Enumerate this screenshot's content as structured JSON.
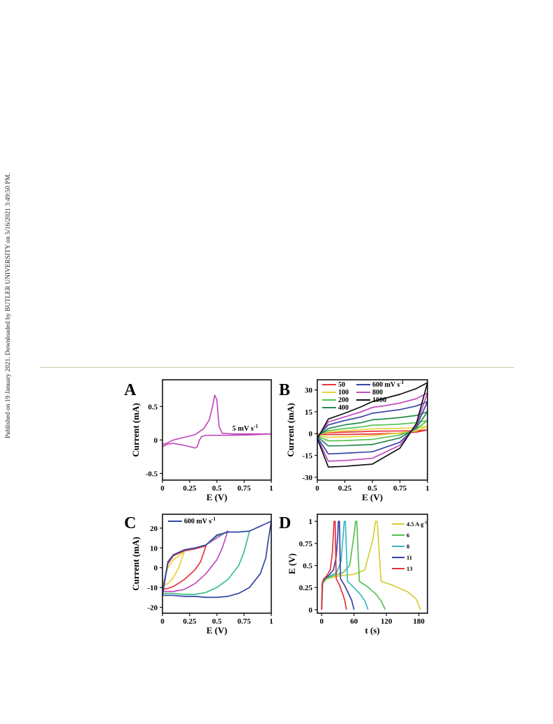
{
  "side_note": "Published on 19 January 2021. Downloaded by BUTLER UNIVERSITY on 5/16/2021 3:49:50 PM.",
  "chart_data": [
    {
      "panel": "A",
      "type": "line",
      "xlabel": "E (V)",
      "ylabel": "Current  (mA)",
      "xlim": [
        0,
        1
      ],
      "ylim": [
        -0.6,
        0.9
      ],
      "xticks": [
        "0",
        "0.25",
        "0.5",
        "0.75",
        "1"
      ],
      "xtick_values": [
        0,
        0.25,
        0.5,
        0.75,
        1
      ],
      "yticks": [
        "-0.5",
        "0",
        "0.5"
      ],
      "ytick_values": [
        -0.5,
        0,
        0.5
      ],
      "annotation": "5 mV s",
      "annotation_sup": "-1",
      "series": [
        {
          "color": "#c14bbd",
          "x": [
            0,
            0.05,
            0.1,
            0.2,
            0.3,
            0.38,
            0.43,
            0.46,
            0.48,
            0.5,
            0.52,
            0.55,
            0.65,
            0.8,
            1,
            0.8,
            0.6,
            0.4,
            0.36,
            0.34,
            0.32,
            0.3,
            0.2,
            0.1,
            0.05,
            0
          ],
          "y": [
            -0.07,
            -0.04,
            0.0,
            0.04,
            0.08,
            0.17,
            0.3,
            0.5,
            0.67,
            0.6,
            0.2,
            0.1,
            0.09,
            0.09,
            0.09,
            0.075,
            0.07,
            0.07,
            0.05,
            0.0,
            -0.1,
            -0.12,
            -0.08,
            -0.05,
            -0.06,
            -0.1
          ]
        }
      ]
    },
    {
      "panel": "B",
      "type": "line",
      "xlabel": "E (V)",
      "ylabel": "Current  (mA)",
      "xlim": [
        0,
        1
      ],
      "ylim": [
        -32,
        37
      ],
      "xticks": [
        "0",
        "0.25",
        "0.5",
        "0.75",
        "1"
      ],
      "xtick_values": [
        0,
        0.25,
        0.5,
        0.75,
        1
      ],
      "yticks": [
        "-30",
        "-15",
        "0",
        "15",
        "30"
      ],
      "ytick_values": [
        -30,
        -15,
        0,
        15,
        30
      ],
      "legend": [
        {
          "label": "50",
          "sup": "",
          "color": "#e8323a"
        },
        {
          "label": "100",
          "sup": "",
          "color": "#e6d43a"
        },
        {
          "label": "200",
          "sup": "",
          "color": "#55c24f"
        },
        {
          "label": "400",
          "sup": "",
          "color": "#238a4a"
        },
        {
          "label": "600 mV s",
          "sup": "-1",
          "color": "#3544a6"
        },
        {
          "label": "800",
          "sup": "",
          "color": "#c14bbd"
        },
        {
          "label": "1000",
          "sup": "",
          "color": "#111111"
        }
      ],
      "series": [
        {
          "name": "50",
          "color": "#e8323a",
          "x": [
            0,
            0.1,
            0.25,
            0.4,
            0.5,
            0.6,
            0.75,
            0.9,
            1,
            0.9,
            0.75,
            0.5,
            0.25,
            0.1,
            0
          ],
          "y": [
            -0.5,
            0.5,
            1.0,
            1.3,
            1.6,
            1.7,
            1.8,
            2.0,
            2.5,
            1.0,
            0.3,
            -0.3,
            -0.6,
            -0.7,
            -0.5
          ]
        },
        {
          "name": "100",
          "color": "#e6d43a",
          "x": [
            0,
            0.1,
            0.25,
            0.4,
            0.5,
            0.6,
            0.75,
            0.9,
            1,
            0.9,
            0.75,
            0.5,
            0.25,
            0.1,
            0
          ],
          "y": [
            -1.0,
            1.0,
            2.0,
            2.6,
            3.2,
            3.4,
            3.6,
            4.0,
            5.0,
            2.0,
            0.5,
            -1.5,
            -2.3,
            -2.6,
            -1.0
          ]
        },
        {
          "name": "200",
          "color": "#55c24f",
          "x": [
            0,
            0.1,
            0.25,
            0.4,
            0.5,
            0.6,
            0.75,
            0.9,
            1,
            0.9,
            0.75,
            0.5,
            0.25,
            0.1,
            0
          ],
          "y": [
            -1.5,
            2.0,
            3.5,
            4.5,
            5.8,
            6.0,
            6.5,
            7.5,
            9.0,
            3.0,
            -1.0,
            -4.0,
            -4.8,
            -5.0,
            -1.5
          ]
        },
        {
          "name": "400",
          "color": "#238a4a",
          "x": [
            0,
            0.1,
            0.25,
            0.4,
            0.5,
            0.6,
            0.75,
            0.9,
            1,
            0.9,
            0.75,
            0.5,
            0.25,
            0.1,
            0
          ],
          "y": [
            -2.0,
            3.5,
            6.0,
            7.5,
            9.5,
            10.0,
            11.0,
            12.5,
            15.0,
            4.0,
            -3.0,
            -7.5,
            -8.3,
            -8.5,
            -2.0
          ]
        },
        {
          "name": "600 mV s-1",
          "color": "#3544a6",
          "x": [
            0,
            0.1,
            0.25,
            0.4,
            0.5,
            0.6,
            0.75,
            0.9,
            1,
            0.9,
            0.75,
            0.5,
            0.25,
            0.1,
            0
          ],
          "y": [
            -2.5,
            6.0,
            9.0,
            11.5,
            14.0,
            15.0,
            16.5,
            19.0,
            22.0,
            5.0,
            -6.0,
            -12.5,
            -13.5,
            -14.0,
            -2.5
          ]
        },
        {
          "name": "800",
          "color": "#c14bbd",
          "x": [
            0,
            0.1,
            0.25,
            0.4,
            0.5,
            0.6,
            0.75,
            0.9,
            1,
            0.9,
            0.75,
            0.5,
            0.25,
            0.1,
            0
          ],
          "y": [
            -3.0,
            8.0,
            11.5,
            15.0,
            18.0,
            19.0,
            21.0,
            24.0,
            28.0,
            6.0,
            -8.0,
            -17.0,
            -18.5,
            -19.0,
            -3.0
          ]
        },
        {
          "name": "1000",
          "color": "#111111",
          "x": [
            0,
            0.1,
            0.25,
            0.4,
            0.5,
            0.6,
            0.75,
            0.9,
            1,
            0.9,
            0.75,
            0.5,
            0.25,
            0.1,
            0
          ],
          "y": [
            -3.5,
            10.0,
            14.0,
            18.5,
            22.0,
            24.0,
            27.0,
            31.0,
            35.0,
            7.0,
            -10.0,
            -21.0,
            -22.5,
            -23.0,
            -3.5
          ]
        }
      ]
    },
    {
      "panel": "C",
      "type": "line",
      "xlabel": "E (V)",
      "ylabel": "Current  (mA)",
      "xlim": [
        0,
        1
      ],
      "ylim": [
        -23,
        27
      ],
      "xticks": [
        "0",
        "0.25",
        "0.5",
        "0.75",
        "1"
      ],
      "xtick_values": [
        0,
        0.25,
        0.5,
        0.75,
        1
      ],
      "yticks": [
        "-20",
        "-10",
        "0",
        "10",
        "20"
      ],
      "ytick_values": [
        -20,
        -10,
        0,
        10,
        20
      ],
      "legend": [
        {
          "label": "600 mV s",
          "sup": "-1",
          "color": "#3544a6"
        }
      ],
      "series": [
        {
          "color": "#e6d43a",
          "x": [
            0,
            0.05,
            0.1,
            0.15,
            0.2,
            0.15,
            0.1,
            0.05,
            0
          ],
          "y": [
            -9.0,
            0.0,
            4.0,
            6.0,
            8.0,
            0.0,
            -5.0,
            -8.0,
            -9.0
          ]
        },
        {
          "color": "#e8323a",
          "x": [
            0,
            0.05,
            0.1,
            0.2,
            0.3,
            0.4,
            0.35,
            0.3,
            0.2,
            0.1,
            0.05,
            0
          ],
          "y": [
            -11.0,
            2.0,
            6.0,
            8.5,
            9.5,
            11.0,
            3.0,
            -1.0,
            -6.0,
            -9.5,
            -10.5,
            -11.0
          ]
        },
        {
          "color": "#c14bbd",
          "x": [
            0,
            0.05,
            0.1,
            0.2,
            0.3,
            0.4,
            0.5,
            0.6,
            0.55,
            0.5,
            0.4,
            0.3,
            0.2,
            0.1,
            0
          ],
          "y": [
            -12.0,
            3.0,
            6.5,
            9.0,
            10.0,
            11.5,
            15.0,
            18.5,
            10.0,
            4.0,
            -3.0,
            -8.0,
            -11.0,
            -12.0,
            -12.0
          ]
        },
        {
          "color": "#3bbf86",
          "x": [
            0,
            0.05,
            0.1,
            0.2,
            0.3,
            0.4,
            0.5,
            0.6,
            0.7,
            0.8,
            0.75,
            0.7,
            0.6,
            0.5,
            0.4,
            0.3,
            0.2,
            0.1,
            0
          ],
          "y": [
            -13.0,
            3.0,
            6.5,
            9.0,
            10.0,
            11.5,
            16.0,
            18.0,
            18.0,
            18.5,
            8.0,
            1.0,
            -6.0,
            -10.0,
            -12.5,
            -13.5,
            -13.5,
            -13.0,
            -13.0
          ]
        },
        {
          "color": "#3544a6",
          "x": [
            0,
            0.05,
            0.1,
            0.2,
            0.3,
            0.4,
            0.5,
            0.6,
            0.7,
            0.8,
            0.9,
            1.0,
            0.97,
            0.95,
            0.9,
            0.8,
            0.7,
            0.6,
            0.5,
            0.4,
            0.3,
            0.2,
            0.1,
            0.05,
            0
          ],
          "y": [
            -14.0,
            3.0,
            6.5,
            9.0,
            10.0,
            11.5,
            16.5,
            18.0,
            18.0,
            18.5,
            21.0,
            23.5,
            13.0,
            5.0,
            -3.0,
            -10.0,
            -13.0,
            -14.5,
            -15.0,
            -15.0,
            -14.5,
            -14.5,
            -14.0,
            -14.0,
            -14.0
          ]
        }
      ]
    },
    {
      "panel": "D",
      "type": "line",
      "xlabel": "t (s)",
      "ylabel": "E (V)",
      "xlim": [
        -8,
        196
      ],
      "ylim": [
        -0.04,
        1.08
      ],
      "xticks": [
        "0",
        "60",
        "120",
        "180"
      ],
      "xtick_values": [
        0,
        60,
        120,
        180
      ],
      "yticks": [
        "0",
        "0.25",
        "0.5",
        "0.75",
        "1"
      ],
      "ytick_values": [
        0,
        0.25,
        0.5,
        0.75,
        1
      ],
      "legend": [
        {
          "label": "4.5 A g",
          "sup": "-1",
          "color": "#d6cf35"
        },
        {
          "label": "6",
          "sup": "",
          "color": "#55c24f"
        },
        {
          "label": "8",
          "sup": "",
          "color": "#39b8c9"
        },
        {
          "label": "11",
          "sup": "",
          "color": "#3544a6"
        },
        {
          "label": "13",
          "sup": "",
          "color": "#e8323a"
        }
      ],
      "series": [
        {
          "name": "4.5 A g-1",
          "color": "#d6cf35",
          "x": [
            0,
            2,
            10,
            30,
            60,
            80,
            95,
            100,
            103,
            110,
            130,
            160,
            175,
            183
          ],
          "y": [
            0,
            0.3,
            0.35,
            0.38,
            0.4,
            0.45,
            0.8,
            1.0,
            1.0,
            0.32,
            0.28,
            0.2,
            0.12,
            0.0
          ]
        },
        {
          "name": "6",
          "color": "#55c24f",
          "x": [
            0,
            2,
            8,
            20,
            40,
            52,
            60,
            63,
            65,
            70,
            85,
            100,
            110,
            118
          ],
          "y": [
            0,
            0.3,
            0.35,
            0.38,
            0.42,
            0.5,
            0.85,
            1.0,
            1.0,
            0.32,
            0.26,
            0.18,
            0.1,
            0.0
          ]
        },
        {
          "name": "8",
          "color": "#39b8c9",
          "x": [
            0,
            1.5,
            6,
            15,
            28,
            36,
            40,
            42,
            44,
            48,
            60,
            72,
            80,
            86
          ],
          "y": [
            0,
            0.3,
            0.35,
            0.38,
            0.42,
            0.55,
            0.85,
            1.0,
            1.0,
            0.32,
            0.25,
            0.17,
            0.1,
            0.0
          ]
        },
        {
          "name": "11",
          "color": "#3544a6",
          "x": [
            0,
            1.5,
            5,
            12,
            22,
            27,
            30,
            31,
            33,
            35,
            42,
            50,
            56,
            60
          ],
          "y": [
            0,
            0.3,
            0.35,
            0.38,
            0.45,
            0.6,
            0.85,
            1.0,
            1.0,
            0.35,
            0.28,
            0.18,
            0.1,
            0.0
          ]
        },
        {
          "name": "13",
          "color": "#e8323a",
          "x": [
            0,
            1,
            4,
            9,
            16,
            20,
            22,
            23,
            25,
            27,
            33,
            39,
            43,
            46
          ],
          "y": [
            0,
            0.3,
            0.35,
            0.38,
            0.45,
            0.65,
            0.88,
            1.0,
            1.0,
            0.35,
            0.28,
            0.18,
            0.1,
            0.0
          ]
        }
      ]
    }
  ]
}
